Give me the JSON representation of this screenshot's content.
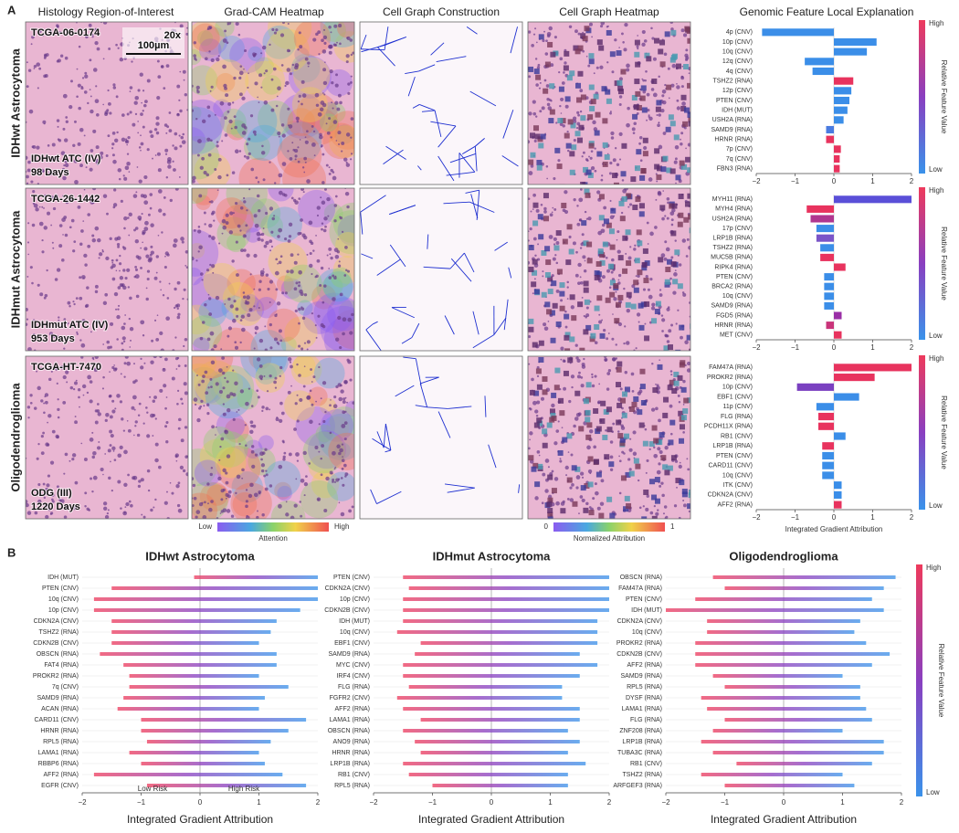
{
  "panel_a": {
    "label": "A",
    "column_titles": [
      "Histology Region-of-Interest",
      "Grad-CAM Heatmap",
      "Cell Graph Construction",
      "Cell Graph Heatmap"
    ],
    "explanation_title": "Genomic Feature Local Explanation",
    "scale": {
      "magnification": "20x",
      "bar": "100µm"
    },
    "rows": [
      {
        "label": "IDHwt Astrocytoma",
        "case": "TCGA-06-0174",
        "diagnosis": "IDHwt ATC (IV)",
        "survival": "98 Days"
      },
      {
        "label": "IDHmut Astrocytoma",
        "case": "TCGA-26-1442",
        "diagnosis": "IDHmut ATC (IV)",
        "survival": "953 Days"
      },
      {
        "label": "Oligodendroglioma",
        "case": "TCGA-HT-7470",
        "diagnosis": "ODG (III)",
        "survival": "1220 Days"
      }
    ],
    "attention_bar": {
      "low": "Low",
      "high": "High",
      "label": "Attention"
    },
    "attribution_bar": {
      "low": "0",
      "high": "1",
      "label": "Normalized Attribution"
    }
  },
  "panel_b": {
    "label": "B"
  },
  "chart_data": [
    {
      "type": "bar",
      "orientation": "horizontal",
      "categories": [
        "4p (CNV)",
        "10p (CNV)",
        "10q (CNV)",
        "12q (CNV)",
        "4q (CNV)",
        "TSHZ2 (RNA)",
        "12p (CNV)",
        "PTEN (CNV)",
        "IDH (MUT)",
        "USH2A (RNA)",
        "SAMD9 (RNA)",
        "HRNR (RNA)",
        "7p (CNV)",
        "7q (CNV)",
        "FBN3 (RNA)"
      ],
      "values": [
        -1.85,
        1.1,
        0.85,
        -0.75,
        -0.55,
        0.5,
        0.45,
        0.4,
        0.35,
        0.25,
        -0.2,
        -0.2,
        0.18,
        0.15,
        0.15
      ],
      "colors": [
        "#3b8ee8",
        "#3b8ee8",
        "#3b8ee8",
        "#3b8ee8",
        "#3b8ee8",
        "#e8335e",
        "#3b8ee8",
        "#3b8ee8",
        "#3b8ee8",
        "#3b8ee8",
        "#4a7be0",
        "#e8335e",
        "#e8335e",
        "#e8335e",
        "#e8335e"
      ],
      "xlim": [
        -2,
        2
      ],
      "xticks": [
        {
          "value": -2,
          "label": "−2"
        },
        {
          "value": -1,
          "label": "−1"
        },
        0,
        1,
        2
      ],
      "colorbar": {
        "high": "High",
        "low": "Low",
        "label": "Relative Feature Value"
      }
    },
    {
      "type": "bar",
      "orientation": "horizontal",
      "categories": [
        "MYH11 (RNA)",
        "MYH4 (RNA)",
        "USH2A (RNA)",
        "17p (CNV)",
        "LRP1B (RNA)",
        "TSHZ2 (RNA)",
        "MUC5B (RNA)",
        "RIPK4 (RNA)",
        "PTEN (CNV)",
        "BRCA2 (RNA)",
        "10q (CNV)",
        "SAMD9 (RNA)",
        "FGD5 (RNA)",
        "HRNR (RNA)",
        "MET (CNV)"
      ],
      "values": [
        2.0,
        -0.7,
        -0.6,
        -0.45,
        -0.45,
        -0.35,
        -0.35,
        0.3,
        -0.25,
        -0.25,
        -0.25,
        -0.25,
        0.2,
        -0.2,
        0.2
      ],
      "colors": [
        "#5a4fd8",
        "#e8335e",
        "#b0368f",
        "#3b8ee8",
        "#7a55c8",
        "#3b8ee8",
        "#e8335e",
        "#e8335e",
        "#3b8ee8",
        "#3b8ee8",
        "#3b8ee8",
        "#3b8ee8",
        "#9a2fa6",
        "#c9347a",
        "#e8335e"
      ],
      "xlim": [
        -2,
        2
      ],
      "xticks": [
        {
          "value": -2,
          "label": "−2"
        },
        {
          "value": -1,
          "label": "−1"
        },
        0,
        1,
        2
      ],
      "colorbar": {
        "high": "High",
        "low": "Low",
        "label": "Relative Feature Value"
      }
    },
    {
      "type": "bar",
      "orientation": "horizontal",
      "categories": [
        "FAM47A (RNA)",
        "PROKR2 (RNA)",
        "10p (CNV)",
        "EBF1 (CNV)",
        "11p (CNV)",
        "FLG (RNA)",
        "PCDH11X (RNA)",
        "RB1 (CNV)",
        "LRP1B (RNA)",
        "PTEN (CNV)",
        "CARD11 (CNV)",
        "10q (CNV)",
        "ITK (CNV)",
        "CDKN2A (CNV)",
        "AFF2 (RNA)"
      ],
      "values": [
        2.0,
        1.05,
        -0.95,
        0.65,
        -0.45,
        -0.4,
        -0.4,
        0.3,
        -0.3,
        -0.3,
        -0.3,
        -0.3,
        0.2,
        0.2,
        0.2
      ],
      "colors": [
        "#e8335e",
        "#e8335e",
        "#7a40c0",
        "#3b8ee8",
        "#3b8ee8",
        "#e8335e",
        "#e8335e",
        "#3b8ee8",
        "#e8335e",
        "#3b8ee8",
        "#3b8ee8",
        "#3b8ee8",
        "#3b8ee8",
        "#3b8ee8",
        "#e8335e"
      ],
      "xlim": [
        -2,
        2
      ],
      "xticks": [
        {
          "value": -2,
          "label": "−2"
        },
        {
          "value": -1,
          "label": "−1"
        },
        0,
        1,
        2
      ],
      "xlabel": "Integrated Gradient Attribution",
      "colorbar": {
        "high": "High",
        "low": "Low",
        "label": "Relative Feature Value"
      }
    },
    {
      "type": "beeswarm",
      "title": "IDHwt Astrocytoma",
      "categories": [
        "IDH (MUT)",
        "PTEN (CNV)",
        "10q (CNV)",
        "10p (CNV)",
        "CDKN2A (CNV)",
        "TSHZ2 (RNA)",
        "CDKN2B (CNV)",
        "OBSCN (RNA)",
        "FAT4 (RNA)",
        "PROKR2 (RNA)",
        "7q (CNV)",
        "SAMD9 (RNA)",
        "ACAN (RNA)",
        "CARD11 (CNV)",
        "HRNR (RNA)",
        "RPL5 (RNA)",
        "LAMA1 (RNA)",
        "RBBP6 (RNA)",
        "AFF2 (RNA)",
        "EGFR (CNV)"
      ],
      "ranges": [
        [
          -0.1,
          2.0
        ],
        [
          -1.5,
          2.0
        ],
        [
          -1.8,
          2.0
        ],
        [
          -1.8,
          1.7
        ],
        [
          -1.5,
          1.3
        ],
        [
          -1.5,
          1.2
        ],
        [
          -1.5,
          1.0
        ],
        [
          -1.7,
          1.3
        ],
        [
          -1.3,
          1.3
        ],
        [
          -1.2,
          1.0
        ],
        [
          -1.2,
          1.5
        ],
        [
          -1.3,
          1.1
        ],
        [
          -1.4,
          1.0
        ],
        [
          -1.0,
          1.8
        ],
        [
          -1.0,
          1.5
        ],
        [
          -0.9,
          1.2
        ],
        [
          -1.2,
          1.0
        ],
        [
          -1.0,
          1.1
        ],
        [
          -1.8,
          1.4
        ],
        [
          -0.9,
          1.8
        ]
      ],
      "annotations": [
        "Low Risk",
        "High Risk"
      ],
      "xlim": [
        -2,
        2
      ],
      "xticks": [
        {
          "value": -2,
          "label": "−2"
        },
        {
          "value": -1,
          "label": "−1"
        },
        0,
        1,
        2
      ],
      "xlabel": "Integrated Gradient Attribution"
    },
    {
      "type": "beeswarm",
      "title": "IDHmut Astrocytoma",
      "categories": [
        "PTEN (CNV)",
        "CDKN2A (CNV)",
        "10p (CNV)",
        "CDKN2B (CNV)",
        "IDH (MUT)",
        "10q (CNV)",
        "EBF1 (CNV)",
        "SAMD9 (RNA)",
        "MYC (CNV)",
        "IRF4 (CNV)",
        "FLG (RNA)",
        "FGFR2 (CNV)",
        "AFF2 (RNA)",
        "LAMA1 (RNA)",
        "OBSCN (RNA)",
        "ANO9 (RNA)",
        "HRNR (RNA)",
        "LRP1B (RNA)",
        "RB1 (CNV)",
        "RPL5 (RNA)"
      ],
      "ranges": [
        [
          -1.5,
          2.0
        ],
        [
          -1.4,
          2.0
        ],
        [
          -1.5,
          2.0
        ],
        [
          -1.5,
          2.0
        ],
        [
          -1.5,
          1.8
        ],
        [
          -1.6,
          1.8
        ],
        [
          -1.2,
          1.8
        ],
        [
          -1.3,
          1.5
        ],
        [
          -1.5,
          1.8
        ],
        [
          -1.5,
          1.5
        ],
        [
          -1.4,
          1.2
        ],
        [
          -1.6,
          1.2
        ],
        [
          -1.5,
          1.5
        ],
        [
          -1.2,
          1.5
        ],
        [
          -1.5,
          1.3
        ],
        [
          -1.3,
          1.5
        ],
        [
          -1.2,
          1.3
        ],
        [
          -1.5,
          1.6
        ],
        [
          -1.4,
          1.3
        ],
        [
          -1.0,
          1.3
        ]
      ],
      "xlim": [
        -2,
        2
      ],
      "xticks": [
        {
          "value": -2,
          "label": "−2"
        },
        {
          "value": -1,
          "label": "−1"
        },
        0,
        1,
        2
      ],
      "xlabel": "Integrated Gradient Attribution"
    },
    {
      "type": "beeswarm",
      "title": "Oligodendroglioma",
      "categories": [
        "OBSCN (RNA)",
        "FAM47A (RNA)",
        "PTEN (CNV)",
        "IDH (MUT)",
        "CDKN2A (CNV)",
        "10q (CNV)",
        "PROKR2 (RNA)",
        "CDKN2B (CNV)",
        "AFF2 (RNA)",
        "SAMD9 (RNA)",
        "RPL5 (RNA)",
        "DYSF (RNA)",
        "LAMA1 (RNA)",
        "FLG (RNA)",
        "ZNF208 (RNA)",
        "LRP1B (RNA)",
        "TUBA3C (RNA)",
        "RB1 (CNV)",
        "TSHZ2 (RNA)",
        "ARFGEF3 (RNA)"
      ],
      "ranges": [
        [
          -1.2,
          1.9
        ],
        [
          -1.0,
          1.7
        ],
        [
          -1.5,
          1.5
        ],
        [
          -2.0,
          1.7
        ],
        [
          -1.3,
          1.3
        ],
        [
          -1.3,
          1.2
        ],
        [
          -1.5,
          1.4
        ],
        [
          -1.5,
          1.8
        ],
        [
          -1.5,
          1.5
        ],
        [
          -1.2,
          1.0
        ],
        [
          -1.0,
          1.3
        ],
        [
          -1.4,
          1.3
        ],
        [
          -1.3,
          1.4
        ],
        [
          -1.0,
          1.5
        ],
        [
          -1.2,
          1.0
        ],
        [
          -1.4,
          1.7
        ],
        [
          -1.2,
          1.7
        ],
        [
          -0.8,
          1.5
        ],
        [
          -1.4,
          1.0
        ],
        [
          -1.0,
          1.2
        ]
      ],
      "xlim": [
        -2,
        2
      ],
      "xticks": [
        {
          "value": -2,
          "label": "−2"
        },
        {
          "value": -1,
          "label": "−1"
        },
        0,
        1,
        2
      ],
      "xlabel": "Integrated Gradient Attribution",
      "colorbar": {
        "high": "High",
        "low": "Low",
        "label": "Relative Feature Value"
      }
    }
  ]
}
